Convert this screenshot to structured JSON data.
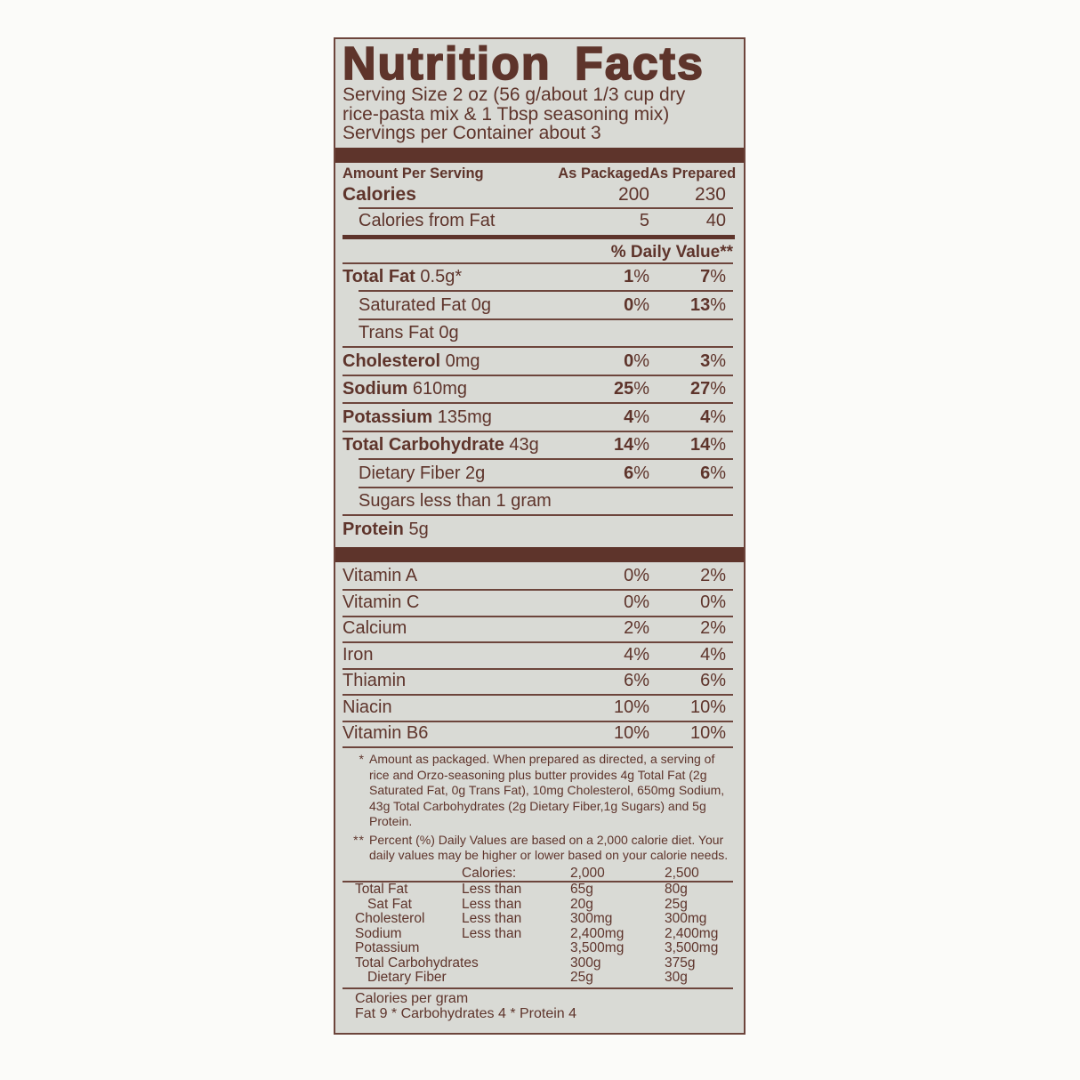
{
  "colors": {
    "ink": "#5e342b",
    "rule": "#6d453c",
    "label_background": "#d9dad5",
    "page_background": "#fbfbf9"
  },
  "label": {
    "title": "Nutrition Facts",
    "serving_lines": [
      "Serving Size 2 oz (56 g/about 1/3 cup dry",
      "rice-pasta mix & 1 Tbsp seasoning mix)",
      "Servings per Container about 3"
    ],
    "columns": {
      "amount_per_serving": "Amount Per Serving",
      "as_packaged": "As Packaged",
      "as_prepared": "As Prepared"
    },
    "calories": {
      "label": "Calories",
      "packaged": "200",
      "prepared": "230"
    },
    "calories_from_fat": {
      "label": "Calories from Fat",
      "packaged": "5",
      "prepared": "40"
    },
    "daily_value_header": "% Daily Value**",
    "nutrients": [
      {
        "label": "Total Fat",
        "amount": "0.5g*",
        "bold": true,
        "indent": false,
        "packaged": "1%",
        "prepared": "7%",
        "rule": "none"
      },
      {
        "label": "Saturated Fat",
        "amount": "0g",
        "bold": false,
        "indent": true,
        "packaged": "0%",
        "prepared": "13%",
        "rule": "indent"
      },
      {
        "label": "Trans Fat",
        "amount": "0g",
        "bold": false,
        "indent": true,
        "packaged": "",
        "prepared": "",
        "rule": "indent"
      },
      {
        "label": "Cholesterol",
        "amount": "0mg",
        "bold": true,
        "indent": false,
        "packaged": "0%",
        "prepared": "3%",
        "rule": "full"
      },
      {
        "label": "Sodium",
        "amount": "610mg",
        "bold": true,
        "indent": false,
        "packaged": "25%",
        "prepared": "27%",
        "rule": "full"
      },
      {
        "label": "Potassium",
        "amount": "135mg",
        "bold": true,
        "indent": false,
        "packaged": "4%",
        "prepared": "4%",
        "rule": "full"
      },
      {
        "label": "Total Carbohydrate",
        "amount": "43g",
        "bold": true,
        "indent": false,
        "packaged": "14%",
        "prepared": "14%",
        "rule": "full"
      },
      {
        "label": "Dietary Fiber",
        "amount": "2g",
        "bold": false,
        "indent": true,
        "packaged": "6%",
        "prepared": "6%",
        "rule": "indent"
      },
      {
        "label": "Sugars less than 1 gram",
        "amount": "",
        "bold": false,
        "indent": true,
        "packaged": "",
        "prepared": "",
        "rule": "indent"
      },
      {
        "label": "Protein",
        "amount": "5g",
        "bold": true,
        "indent": false,
        "packaged": "",
        "prepared": "",
        "rule": "full"
      }
    ],
    "vitamins": [
      {
        "label": "Vitamin A",
        "packaged": "0%",
        "prepared": "2%"
      },
      {
        "label": "Vitamin C",
        "packaged": "0%",
        "prepared": "0%"
      },
      {
        "label": "Calcium",
        "packaged": "2%",
        "prepared": "2%"
      },
      {
        "label": "Iron",
        "packaged": "4%",
        "prepared": "4%"
      },
      {
        "label": "Thiamin",
        "packaged": "6%",
        "prepared": "6%"
      },
      {
        "label": "Niacin",
        "packaged": "10%",
        "prepared": "10%"
      },
      {
        "label": "Vitamin B6",
        "packaged": "10%",
        "prepared": "10%"
      }
    ],
    "footnotes": [
      {
        "marker": "*",
        "text": "Amount as packaged. When prepared as directed, a serving of rice and Orzo-seasoning plus butter provides 4g Total Fat (2g Saturated Fat, 0g Trans Fat), 10mg Cholesterol, 650mg Sodium, 43g Total Carbohydrates (2g Dietary Fiber,1g Sugars) and 5g Protein."
      },
      {
        "marker": "**",
        "text": "Percent (%) Daily Values are based on a 2,000 calorie diet. Your daily values may be higher or lower based on your calorie needs."
      }
    ],
    "dv_table": {
      "header": [
        "",
        "Calories:",
        "2,000",
        "2,500"
      ],
      "rows": [
        {
          "cells": [
            "Total Fat",
            "Less than",
            "65g",
            "80g"
          ],
          "indent": false
        },
        {
          "cells": [
            "Sat Fat",
            "Less than",
            "20g",
            "25g"
          ],
          "indent": true
        },
        {
          "cells": [
            "Cholesterol",
            "Less than",
            "300mg",
            "300mg"
          ],
          "indent": false
        },
        {
          "cells": [
            "Sodium",
            "Less than",
            "2,400mg",
            "2,400mg"
          ],
          "indent": false
        },
        {
          "cells": [
            "Potassium",
            "",
            "3,500mg",
            "3,500mg"
          ],
          "indent": false
        },
        {
          "cells": [
            "Total Carbohydrates",
            "",
            "300g",
            "375g"
          ],
          "indent": false
        },
        {
          "cells": [
            "Dietary Fiber",
            "",
            "25g",
            "30g"
          ],
          "indent": true
        }
      ]
    },
    "calories_per_gram": {
      "line1": "Calories per gram",
      "line2": "Fat 9 * Carbohydrates 4 * Protein 4"
    }
  }
}
